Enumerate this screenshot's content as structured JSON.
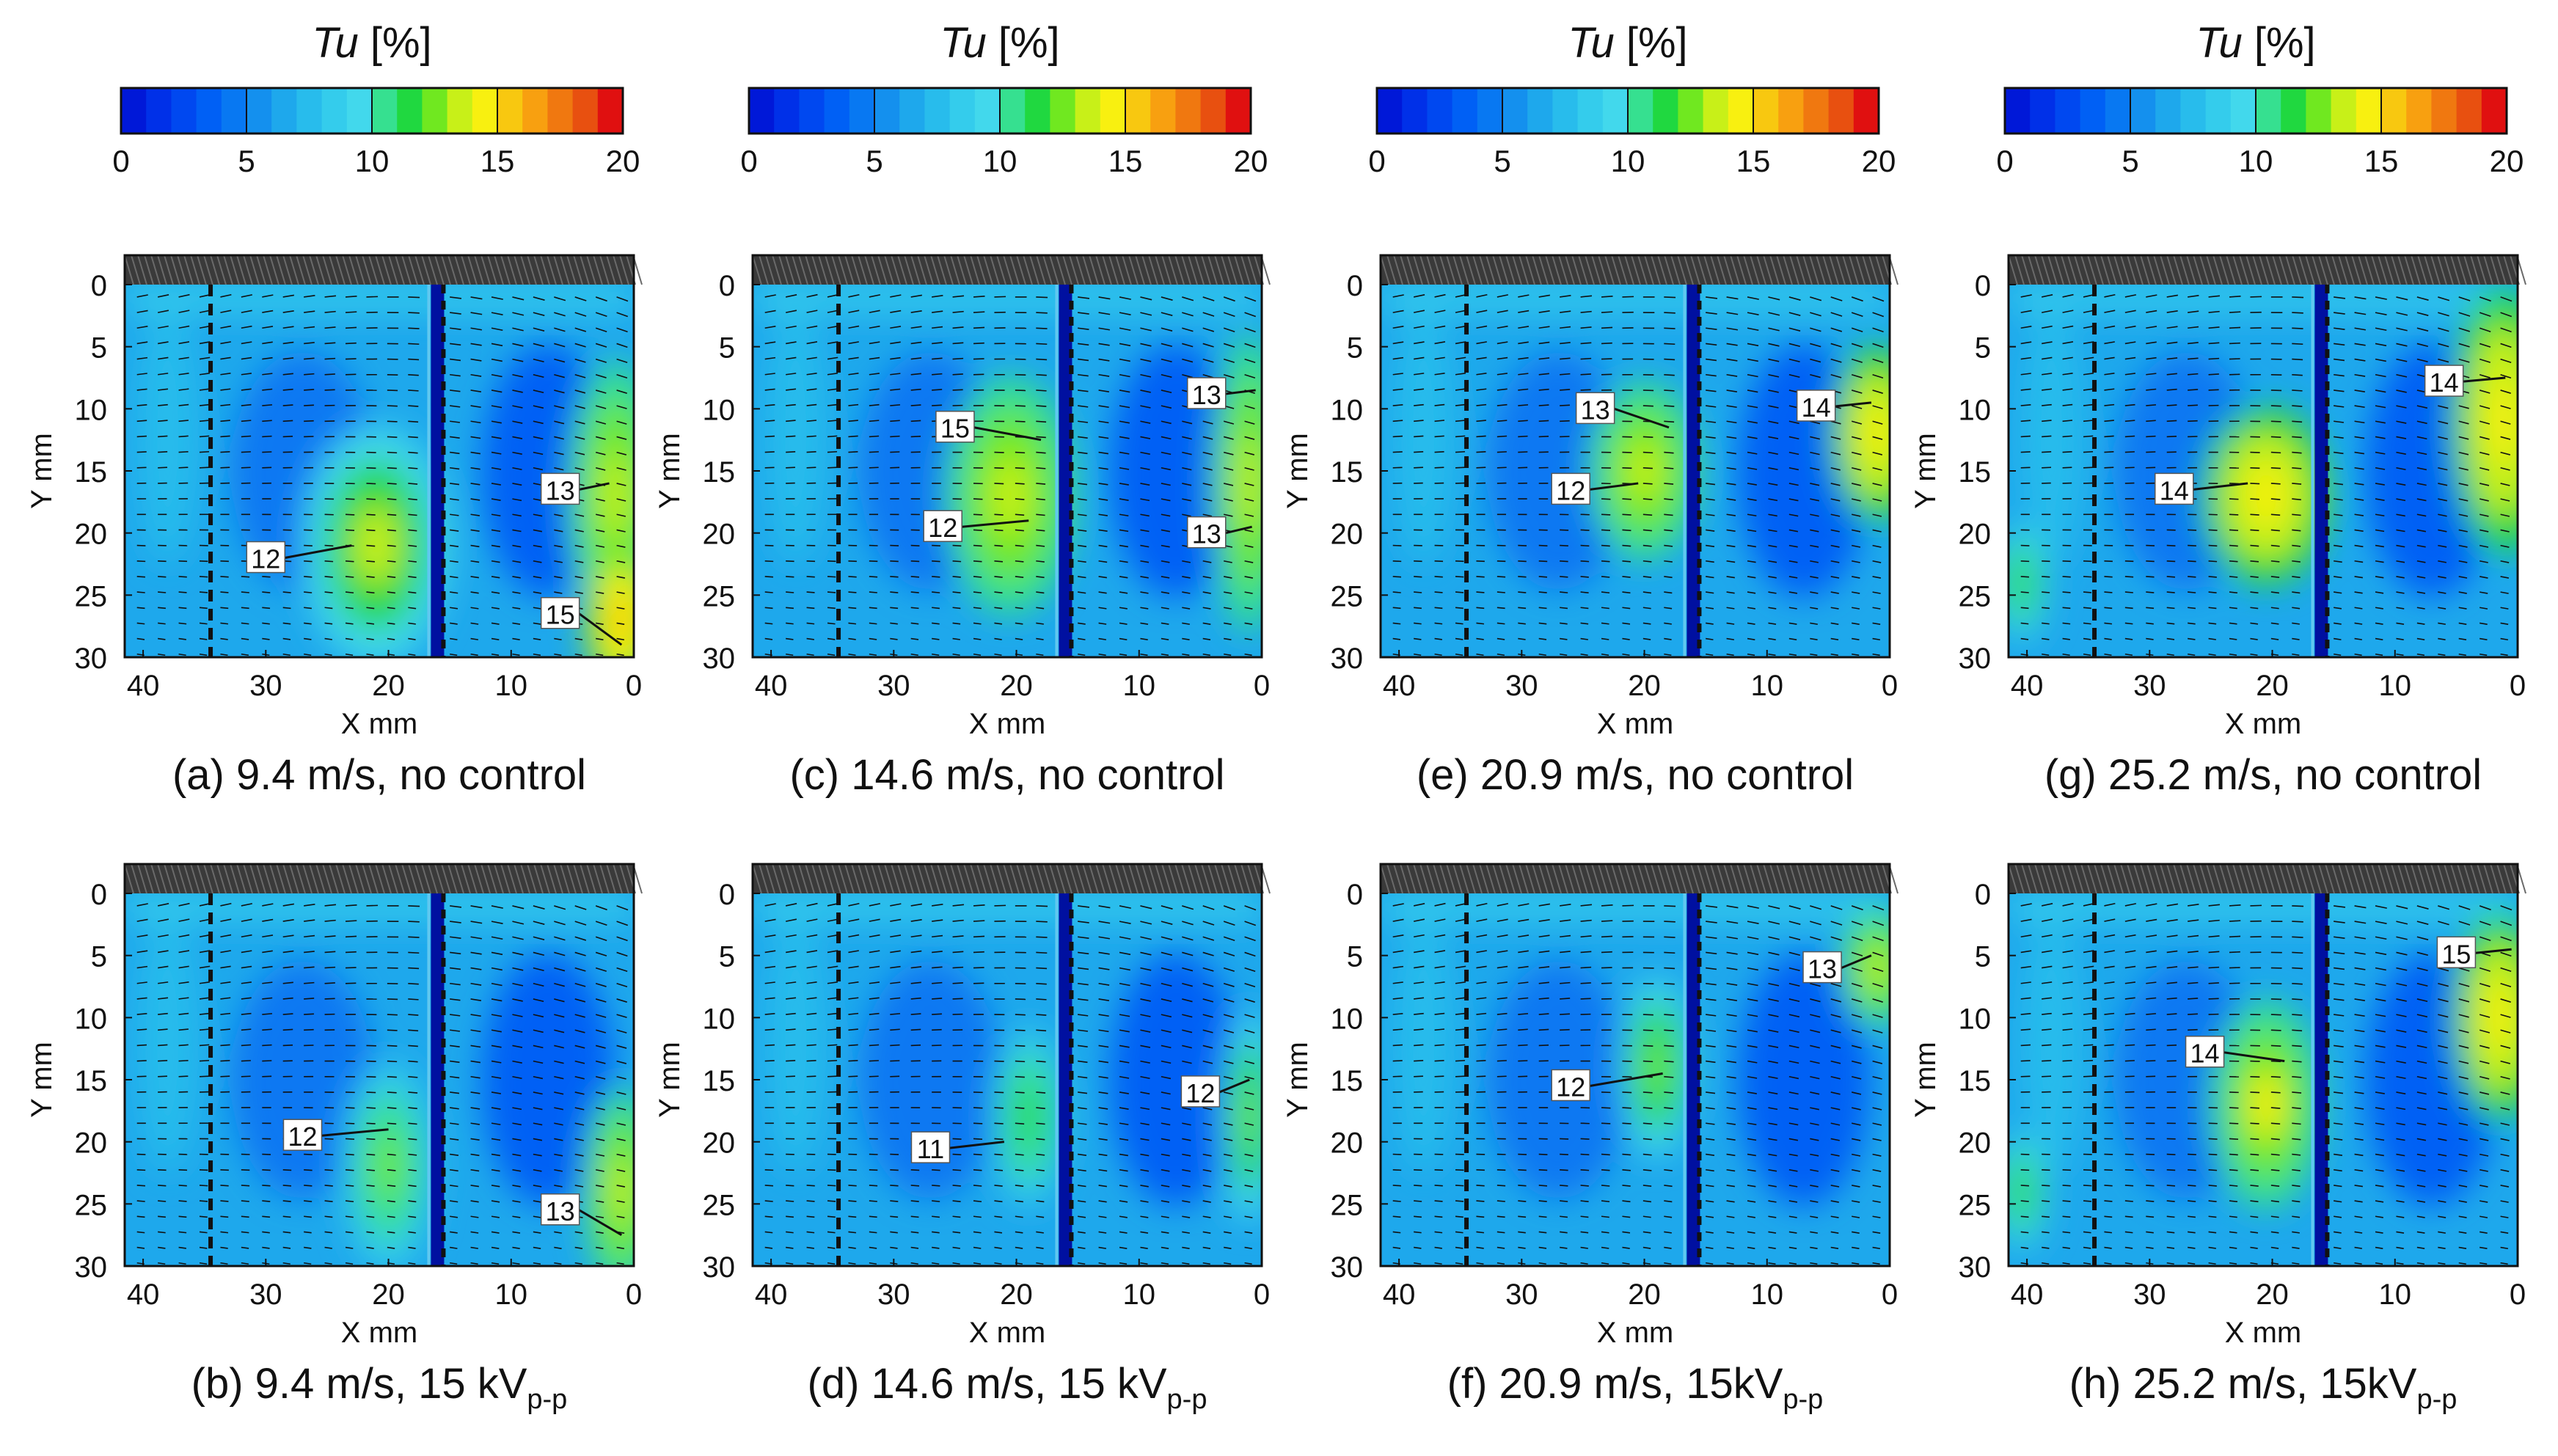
{
  "figure": {
    "colorbar": {
      "title_italic": "Tu",
      "title_unit": "[%]",
      "ticks": [
        "0",
        "5",
        "10",
        "15",
        "20"
      ],
      "range": [
        0,
        20
      ],
      "levels": 20,
      "colors": [
        "#0018d8",
        "#0030e8",
        "#0048f0",
        "#0060f5",
        "#0878f2",
        "#1490ee",
        "#1ea8ec",
        "#28bcec",
        "#34ccec",
        "#42d8ec",
        "#36e090",
        "#20d840",
        "#70e820",
        "#c8f018",
        "#f8f010",
        "#f8c810",
        "#f8a010",
        "#f07810",
        "#e85010",
        "#e01010"
      ]
    },
    "axes": {
      "xlabel": "X mm",
      "ylabel": "Y mm",
      "xticks": [
        "40",
        "30",
        "20",
        "10",
        "0"
      ],
      "yticks": [
        "0",
        "5",
        "10",
        "15",
        "20",
        "25",
        "30"
      ],
      "xlim": [
        41.5,
        0
      ],
      "ylim": [
        30,
        0
      ],
      "dashed_line_x": 34.5,
      "electrode_edge_x": 16.5,
      "plate_x": 16.0
    }
  },
  "chart_data": [
    {
      "type": "heatmap",
      "panel": "a",
      "caption_prefix": "(a)",
      "caption_main": "9.4 m/s, no control",
      "caption_sub": "",
      "speed_ms": 9.4,
      "control": "none",
      "hot_zones": [
        {
          "x": 21,
          "y": 21,
          "rx": 4,
          "ry": 8,
          "tu": 12.4
        },
        {
          "x": 1.5,
          "y": 17,
          "rx": 2.5,
          "ry": 9,
          "tu": 12.8
        },
        {
          "x": 1,
          "y": 27,
          "rx": 2,
          "ry": 5,
          "tu": 14.5
        }
      ],
      "labels": [
        {
          "text": "12",
          "x": 30,
          "y": 22,
          "ax": 23,
          "ay": 21
        },
        {
          "text": "13",
          "x": 6,
          "y": 16.5,
          "ax": 2,
          "ay": 16
        },
        {
          "text": "15",
          "x": 6,
          "y": 26.5,
          "ax": 1,
          "ay": 29
        }
      ]
    },
    {
      "type": "heatmap",
      "panel": "b",
      "caption_prefix": "(b)",
      "caption_main": "9.4 m/s, 15 kV",
      "caption_sub": "p-p",
      "speed_ms": 9.4,
      "control": "15 kVp-p",
      "hot_zones": [
        {
          "x": 20,
          "y": 22,
          "rx": 2.5,
          "ry": 7,
          "tu": 11.2
        },
        {
          "x": 1,
          "y": 24,
          "rx": 2,
          "ry": 7,
          "tu": 13.0
        }
      ],
      "labels": [
        {
          "text": "12",
          "x": 27,
          "y": 19.5,
          "ax": 20,
          "ay": 19
        },
        {
          "text": "13",
          "x": 6,
          "y": 25.5,
          "ax": 1,
          "ay": 27.5
        }
      ]
    },
    {
      "type": "heatmap",
      "panel": "c",
      "caption_prefix": "(c)",
      "caption_main": "14.6 m/s, no control",
      "caption_sub": "",
      "speed_ms": 14.6,
      "control": "none",
      "hot_zones": [
        {
          "x": 20.5,
          "y": 17,
          "rx": 3.5,
          "ry": 8,
          "tu": 12.8
        },
        {
          "x": 1,
          "y": 16,
          "rx": 2,
          "ry": 10,
          "tu": 12.8
        }
      ],
      "labels": [
        {
          "text": "15",
          "x": 25,
          "y": 11.5,
          "ax": 18,
          "ay": 12.5
        },
        {
          "text": "12",
          "x": 26,
          "y": 19.5,
          "ax": 19,
          "ay": 19
        },
        {
          "text": "13",
          "x": 4.5,
          "y": 8.8,
          "ax": 0.5,
          "ay": 8.5
        },
        {
          "text": "13",
          "x": 4.5,
          "y": 20,
          "ax": 0.8,
          "ay": 19.5
        }
      ]
    },
    {
      "type": "heatmap",
      "panel": "d",
      "caption_prefix": "(d)",
      "caption_main": "14.6 m/s, 15 kV",
      "caption_sub": "p-p",
      "speed_ms": 14.6,
      "control": "15 kVp-p",
      "hot_zones": [
        {
          "x": 19,
          "y": 18,
          "rx": 2,
          "ry": 6,
          "tu": 10.5
        },
        {
          "x": 1,
          "y": 18,
          "rx": 1.5,
          "ry": 7,
          "tu": 11.5
        }
      ],
      "labels": [
        {
          "text": "11",
          "x": 27,
          "y": 20.5,
          "ax": 21,
          "ay": 20
        },
        {
          "text": "12",
          "x": 5,
          "y": 16,
          "ax": 1,
          "ay": 15
        }
      ]
    },
    {
      "type": "heatmap",
      "panel": "e",
      "caption_prefix": "(e)",
      "caption_main": "20.9 m/s, no control",
      "caption_sub": "",
      "speed_ms": 20.9,
      "control": "none",
      "hot_zones": [
        {
          "x": 20,
          "y": 15,
          "rx": 3,
          "ry": 6,
          "tu": 12.6
        },
        {
          "x": 1,
          "y": 12,
          "rx": 2.5,
          "ry": 6,
          "tu": 13.5
        }
      ],
      "labels": [
        {
          "text": "13",
          "x": 24,
          "y": 10,
          "ax": 18,
          "ay": 11.5
        },
        {
          "text": "12",
          "x": 26,
          "y": 16.5,
          "ax": 20.5,
          "ay": 16
        },
        {
          "text": "14",
          "x": 6,
          "y": 9.8,
          "ax": 1.5,
          "ay": 9.5
        }
      ]
    },
    {
      "type": "heatmap",
      "panel": "f",
      "caption_prefix": "(f)",
      "caption_main": "20.9 m/s, 15kV",
      "caption_sub": "p-p",
      "speed_ms": 20.9,
      "control": "15kVp-p",
      "hot_zones": [
        {
          "x": 19,
          "y": 14,
          "rx": 2,
          "ry": 6,
          "tu": 11.5
        },
        {
          "x": 1,
          "y": 6,
          "rx": 2,
          "ry": 4,
          "tu": 12.8
        }
      ],
      "labels": [
        {
          "text": "12",
          "x": 26,
          "y": 15.5,
          "ax": 18.5,
          "ay": 14.5
        },
        {
          "text": "13",
          "x": 5.5,
          "y": 6,
          "ax": 1.5,
          "ay": 5
        }
      ]
    },
    {
      "type": "heatmap",
      "panel": "g",
      "caption_prefix": "(g)",
      "caption_main": "25.2 m/s, no control",
      "caption_sub": "",
      "speed_ms": 25.2,
      "control": "none",
      "hot_zones": [
        {
          "x": 20.5,
          "y": 17,
          "rx": 3.5,
          "ry": 6,
          "tu": 13.5
        },
        {
          "x": 1.2,
          "y": 11,
          "rx": 2.8,
          "ry": 9,
          "tu": 13.8
        },
        {
          "x": 40.5,
          "y": 24,
          "rx": 1.5,
          "ry": 4,
          "tu": 10.5
        }
      ],
      "labels": [
        {
          "text": "14",
          "x": 28,
          "y": 16.5,
          "ax": 22,
          "ay": 16
        },
        {
          "text": "14",
          "x": 6,
          "y": 7.8,
          "ax": 1,
          "ay": 7.5
        }
      ]
    },
    {
      "type": "heatmap",
      "panel": "h",
      "caption_prefix": "(h)",
      "caption_main": "25.2 m/s, 15kV",
      "caption_sub": "p-p",
      "speed_ms": 25.2,
      "control": "15kVp-p",
      "hot_zones": [
        {
          "x": 20.5,
          "y": 17,
          "rx": 3,
          "ry": 7,
          "tu": 13.2
        },
        {
          "x": 1.5,
          "y": 10,
          "rx": 2.5,
          "ry": 7,
          "tu": 13.8
        },
        {
          "x": 40.5,
          "y": 24,
          "rx": 1.5,
          "ry": 4,
          "tu": 10.5
        }
      ],
      "labels": [
        {
          "text": "14",
          "x": 25.5,
          "y": 12.8,
          "ax": 19,
          "ay": 13.5
        },
        {
          "text": "15",
          "x": 5,
          "y": 4.8,
          "ax": 0.5,
          "ay": 4.5
        }
      ]
    }
  ]
}
